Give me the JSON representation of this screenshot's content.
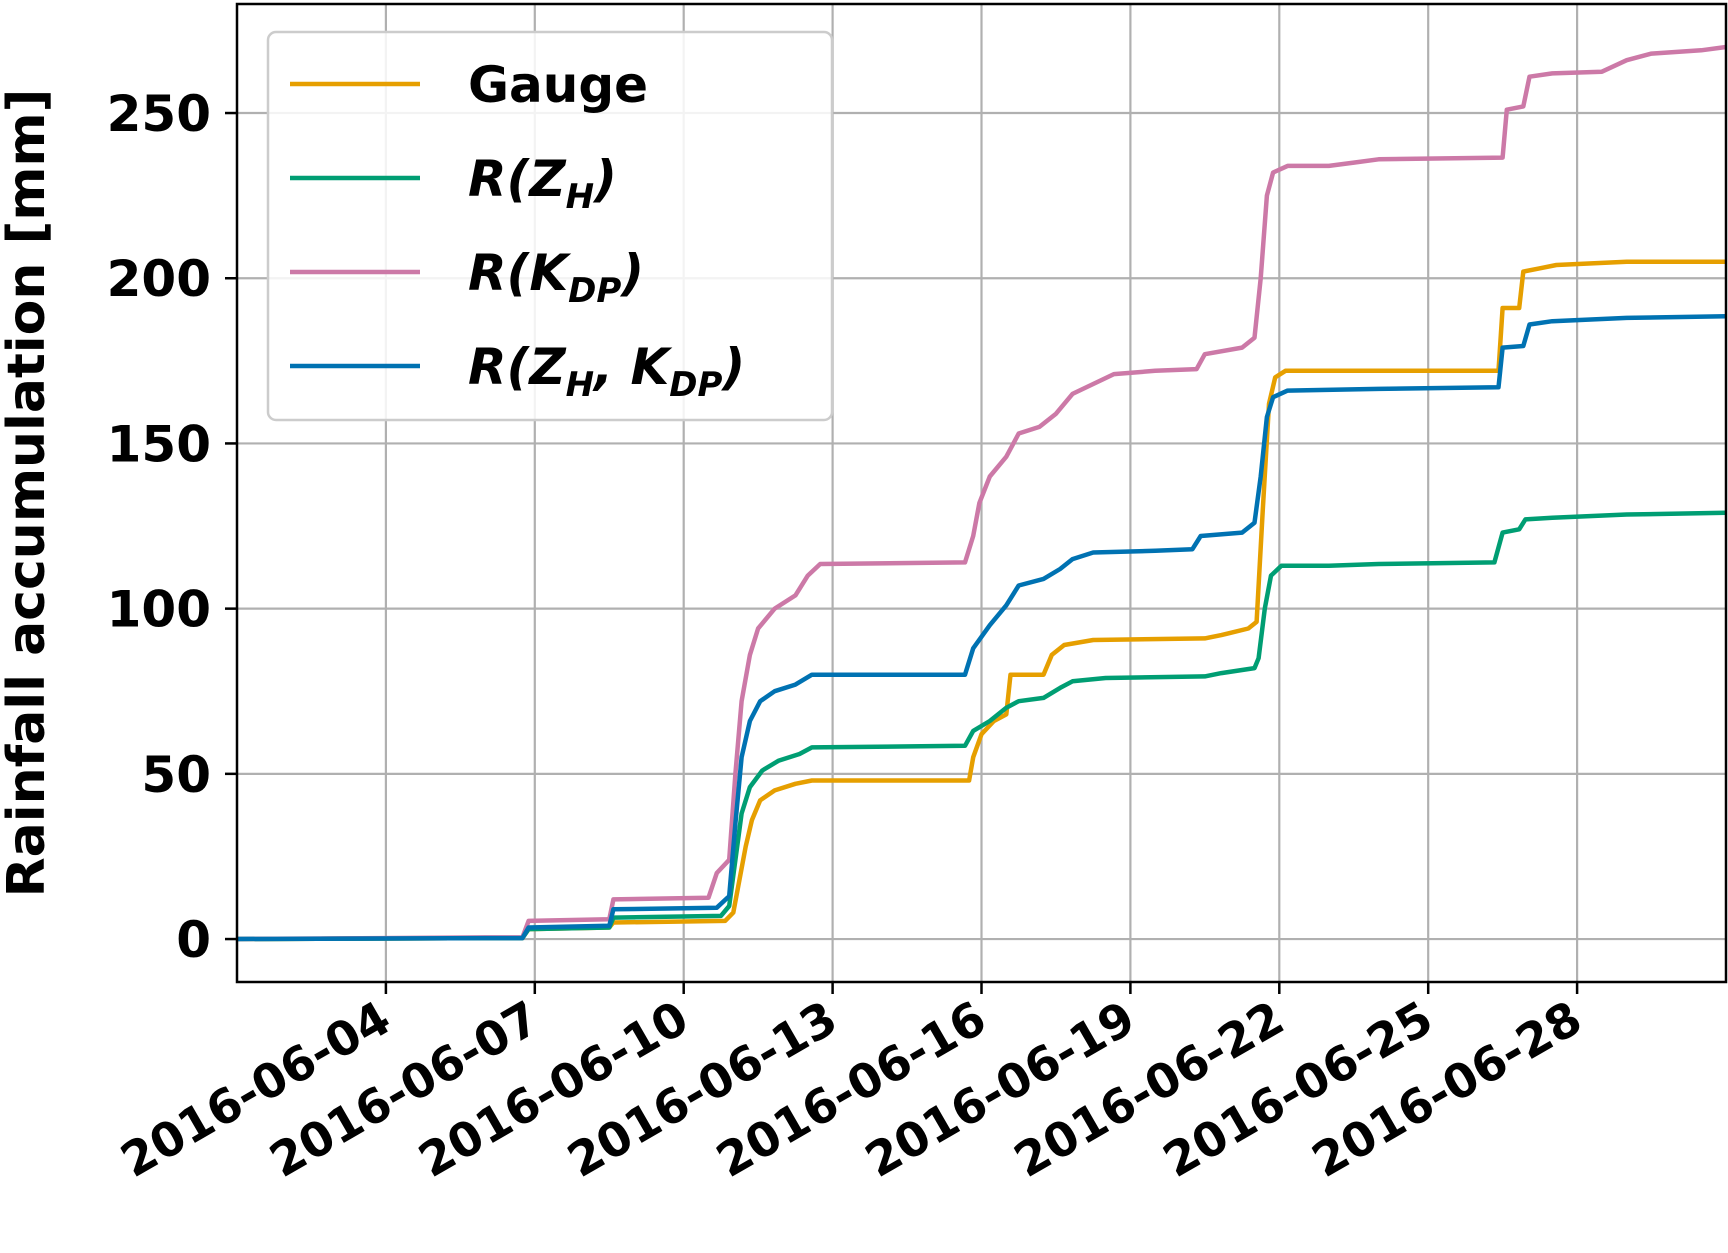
{
  "chart_data": {
    "type": "line",
    "title": "",
    "xlabel": "",
    "ylabel": "Rainfall accumulation [mm]",
    "x_type": "date",
    "xlim": [
      "2016-06-01",
      "2016-06-31"
    ],
    "ylim": [
      -13,
      283
    ],
    "x_ticks": [
      "2016-06-04",
      "2016-06-07",
      "2016-06-10",
      "2016-06-13",
      "2016-06-16",
      "2016-06-19",
      "2016-06-22",
      "2016-06-25",
      "2016-06-28"
    ],
    "y_ticks": [
      0,
      50,
      100,
      150,
      200,
      250
    ],
    "grid": true,
    "legend_position": "top-left",
    "legend": [
      {
        "series": 0,
        "text": "Gauge",
        "italic": false
      },
      {
        "series": 1,
        "text": "R(Z",
        "sub": "H",
        "tail": ")",
        "italic": true
      },
      {
        "series": 2,
        "text": "R(K",
        "sub": "DP",
        "tail": ")",
        "italic": true
      },
      {
        "series": 3,
        "text": "R(Z",
        "sub": "H",
        "mid": ", K",
        "sub2": "DP",
        "tail": ")",
        "italic": true
      }
    ],
    "series": [
      {
        "name": "Gauge",
        "color": "#E69F00",
        "points": [
          [
            "2016-06-01",
            0
          ],
          [
            "2016-06-06",
            0.3
          ],
          [
            "2016-06-06 18:00",
            0.3
          ],
          [
            "2016-06-06 21:00",
            3
          ],
          [
            "2016-06-08 12:00",
            3.5
          ],
          [
            "2016-06-08 14:00",
            5
          ],
          [
            "2016-06-10 20:00",
            5.5
          ],
          [
            "2016-06-11 00:00",
            8
          ],
          [
            "2016-06-11 03:00",
            18
          ],
          [
            "2016-06-11 06:00",
            28
          ],
          [
            "2016-06-11 09:00",
            36
          ],
          [
            "2016-06-11 13:00",
            42
          ],
          [
            "2016-06-11 20:00",
            45
          ],
          [
            "2016-06-12 06:00",
            47
          ],
          [
            "2016-06-12 14:00",
            48
          ],
          [
            "2016-06-15 18:00",
            48
          ],
          [
            "2016-06-15 20:00",
            55
          ],
          [
            "2016-06-16 00:00",
            62
          ],
          [
            "2016-06-16 06:00",
            66
          ],
          [
            "2016-06-16 12:00",
            68
          ],
          [
            "2016-06-16 14:00",
            80
          ],
          [
            "2016-06-17 06:00",
            80
          ],
          [
            "2016-06-17 10:00",
            86
          ],
          [
            "2016-06-17 16:00",
            89
          ],
          [
            "2016-06-18 06:00",
            90.5
          ],
          [
            "2016-06-20 12:00",
            91
          ],
          [
            "2016-06-20 20:00",
            92
          ],
          [
            "2016-06-21 09:00",
            94
          ],
          [
            "2016-06-21 13:00",
            96
          ],
          [
            "2016-06-21 16:00",
            130
          ],
          [
            "2016-06-21 19:00",
            162
          ],
          [
            "2016-06-21 22:00",
            170
          ],
          [
            "2016-06-22 03:00",
            172
          ],
          [
            "2016-06-26 10:00",
            172
          ],
          [
            "2016-06-26 12:00",
            191
          ],
          [
            "2016-06-26 20:00",
            191
          ],
          [
            "2016-06-26 22:00",
            202
          ],
          [
            "2016-06-27 06:00",
            203
          ],
          [
            "2016-06-27 14:00",
            204
          ],
          [
            "2016-06-29",
            205
          ],
          [
            "2016-06-31",
            205
          ]
        ]
      },
      {
        "name": "R(ZH)",
        "color": "#009E73",
        "points": [
          [
            "2016-06-01",
            0
          ],
          [
            "2016-06-06",
            0.3
          ],
          [
            "2016-06-06 18:00",
            0.3
          ],
          [
            "2016-06-06 21:00",
            3
          ],
          [
            "2016-06-08 12:00",
            3.5
          ],
          [
            "2016-06-08 14:00",
            6.5
          ],
          [
            "2016-06-10 18:00",
            7
          ],
          [
            "2016-06-10 22:00",
            10
          ],
          [
            "2016-06-11 01:00",
            24
          ],
          [
            "2016-06-11 04:00",
            38
          ],
          [
            "2016-06-11 08:00",
            46
          ],
          [
            "2016-06-11 14:00",
            51
          ],
          [
            "2016-06-11 22:00",
            54
          ],
          [
            "2016-06-12 08:00",
            56
          ],
          [
            "2016-06-12 14:00",
            58
          ],
          [
            "2016-06-15 16:00",
            58.5
          ],
          [
            "2016-06-15 20:00",
            63
          ],
          [
            "2016-06-16 04:00",
            66
          ],
          [
            "2016-06-16 12:00",
            70
          ],
          [
            "2016-06-16 18:00",
            72
          ],
          [
            "2016-06-17 06:00",
            73
          ],
          [
            "2016-06-17 14:00",
            76
          ],
          [
            "2016-06-17 20:00",
            78
          ],
          [
            "2016-06-18 12:00",
            79
          ],
          [
            "2016-06-20 12:00",
            79.5
          ],
          [
            "2016-06-20 20:00",
            80.5
          ],
          [
            "2016-06-21 12:00",
            82
          ],
          [
            "2016-06-21 14:00",
            85
          ],
          [
            "2016-06-21 17:00",
            100
          ],
          [
            "2016-06-21 20:00",
            110
          ],
          [
            "2016-06-22 01:00",
            113
          ],
          [
            "2016-06-23 00:00",
            113
          ],
          [
            "2016-06-24 00:00",
            113.5
          ],
          [
            "2016-06-26 08:00",
            114
          ],
          [
            "2016-06-26 12:00",
            123
          ],
          [
            "2016-06-26 20:00",
            124
          ],
          [
            "2016-06-26 23:00",
            127
          ],
          [
            "2016-06-27 12:00",
            127.5
          ],
          [
            "2016-06-29",
            128.5
          ],
          [
            "2016-06-31",
            129
          ]
        ]
      },
      {
        "name": "R(KDP)",
        "color": "#CC79A7",
        "points": [
          [
            "2016-06-01",
            0
          ],
          [
            "2016-06-06",
            0.5
          ],
          [
            "2016-06-06 18:00",
            0.5
          ],
          [
            "2016-06-06 21:00",
            5.5
          ],
          [
            "2016-06-08 12:00",
            6
          ],
          [
            "2016-06-08 14:00",
            12
          ],
          [
            "2016-06-10 12:00",
            12.5
          ],
          [
            "2016-06-10 16:00",
            20
          ],
          [
            "2016-06-10 22:00",
            24
          ],
          [
            "2016-06-11 01:00",
            50
          ],
          [
            "2016-06-11 04:00",
            72
          ],
          [
            "2016-06-11 08:00",
            86
          ],
          [
            "2016-06-11 12:00",
            94
          ],
          [
            "2016-06-11 20:00",
            100
          ],
          [
            "2016-06-12 06:00",
            104
          ],
          [
            "2016-06-12 12:00",
            110
          ],
          [
            "2016-06-12 18:00",
            113.5
          ],
          [
            "2016-06-15 16:00",
            114
          ],
          [
            "2016-06-15 20:00",
            122
          ],
          [
            "2016-06-15 23:00",
            132
          ],
          [
            "2016-06-16 04:00",
            140
          ],
          [
            "2016-06-16 12:00",
            146
          ],
          [
            "2016-06-16 18:00",
            153
          ],
          [
            "2016-06-17 04:00",
            155
          ],
          [
            "2016-06-17 12:00",
            159
          ],
          [
            "2016-06-17 20:00",
            165
          ],
          [
            "2016-06-18 06:00",
            168
          ],
          [
            "2016-06-18 16:00",
            171
          ],
          [
            "2016-06-19 12:00",
            172
          ],
          [
            "2016-06-20 08:00",
            172.5
          ],
          [
            "2016-06-20 12:00",
            177
          ],
          [
            "2016-06-21 06:00",
            179
          ],
          [
            "2016-06-21 12:00",
            182
          ],
          [
            "2016-06-21 15:00",
            200
          ],
          [
            "2016-06-21 18:00",
            225
          ],
          [
            "2016-06-21 21:00",
            232
          ],
          [
            "2016-06-22 04:00",
            234
          ],
          [
            "2016-06-23 00:00",
            234
          ],
          [
            "2016-06-23 12:00",
            235
          ],
          [
            "2016-06-24 00:00",
            236
          ],
          [
            "2016-06-26 12:00",
            236.5
          ],
          [
            "2016-06-26 14:00",
            251
          ],
          [
            "2016-06-26 22:00",
            252
          ],
          [
            "2016-06-27 01:00",
            261
          ],
          [
            "2016-06-27 12:00",
            262
          ],
          [
            "2016-06-28 12:00",
            262.5
          ],
          [
            "2016-06-29 00:00",
            266
          ],
          [
            "2016-06-29 12:00",
            268
          ],
          [
            "2016-06-30 12:00",
            269
          ],
          [
            "2016-06-31",
            270
          ]
        ]
      },
      {
        "name": "R(ZH,KDP)",
        "color": "#0072B2",
        "points": [
          [
            "2016-06-01",
            0
          ],
          [
            "2016-06-06",
            0.3
          ],
          [
            "2016-06-06 18:00",
            0.3
          ],
          [
            "2016-06-06 21:00",
            3.5
          ],
          [
            "2016-06-08 12:00",
            4
          ],
          [
            "2016-06-08 14:00",
            9
          ],
          [
            "2016-06-10 16:00",
            9.5
          ],
          [
            "2016-06-10 22:00",
            13
          ],
          [
            "2016-06-11 01:00",
            35
          ],
          [
            "2016-06-11 04:00",
            55
          ],
          [
            "2016-06-11 08:00",
            66
          ],
          [
            "2016-06-11 13:00",
            72
          ],
          [
            "2016-06-11 20:00",
            75
          ],
          [
            "2016-06-12 06:00",
            77
          ],
          [
            "2016-06-12 14:00",
            80
          ],
          [
            "2016-06-15 16:00",
            80
          ],
          [
            "2016-06-15 20:00",
            88
          ],
          [
            "2016-06-16 04:00",
            95
          ],
          [
            "2016-06-16 12:00",
            101
          ],
          [
            "2016-06-16 18:00",
            107
          ],
          [
            "2016-06-17 06:00",
            109
          ],
          [
            "2016-06-17 14:00",
            112
          ],
          [
            "2016-06-17 20:00",
            115
          ],
          [
            "2016-06-18 06:00",
            117
          ],
          [
            "2016-06-19 12:00",
            117.5
          ],
          [
            "2016-06-20 06:00",
            118
          ],
          [
            "2016-06-20 10:00",
            122
          ],
          [
            "2016-06-21 06:00",
            123
          ],
          [
            "2016-06-21 12:00",
            126
          ],
          [
            "2016-06-21 15:00",
            140
          ],
          [
            "2016-06-21 18:00",
            158
          ],
          [
            "2016-06-21 21:00",
            164
          ],
          [
            "2016-06-22 04:00",
            166
          ],
          [
            "2016-06-24 00:00",
            166.5
          ],
          [
            "2016-06-26 10:00",
            167
          ],
          [
            "2016-06-26 12:00",
            179
          ],
          [
            "2016-06-26 22:00",
            179.5
          ],
          [
            "2016-06-27 01:00",
            186
          ],
          [
            "2016-06-27 12:00",
            187
          ],
          [
            "2016-06-29",
            188
          ],
          [
            "2016-06-31",
            188.5
          ]
        ]
      }
    ]
  }
}
